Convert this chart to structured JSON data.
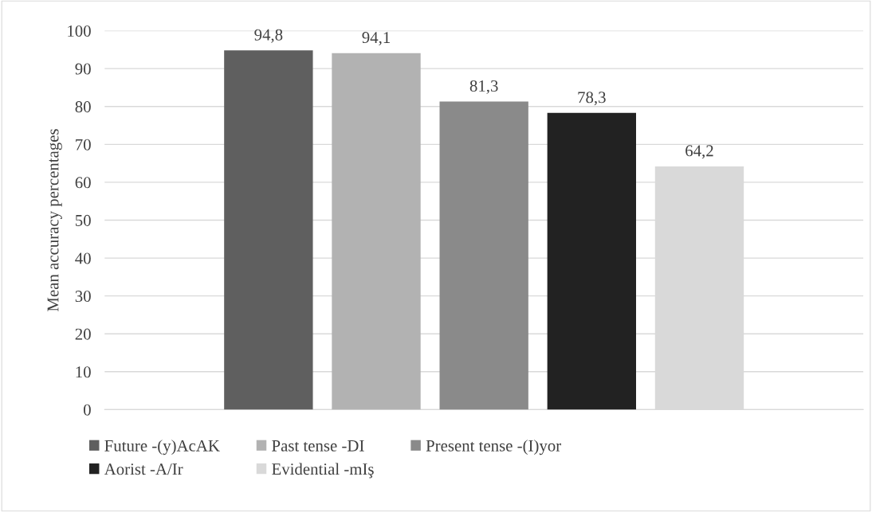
{
  "chart_data": {
    "type": "bar",
    "ylabel": "Mean accuracy percentages",
    "categories": [
      null
    ],
    "series": [
      {
        "name": "Future -(y)AcAK",
        "color": "#5f5f5f",
        "values": [
          94.8
        ],
        "value_labels": [
          "94,8"
        ]
      },
      {
        "name": "Past tense -DI",
        "color": "#b2b2b2",
        "values": [
          94.1
        ],
        "value_labels": [
          "94,1"
        ]
      },
      {
        "name": "Present tense -(I)yor",
        "color": "#8a8a8a",
        "values": [
          81.3
        ],
        "value_labels": [
          "81,3"
        ]
      },
      {
        "name": "Aorist -A/Ir",
        "color": "#222222",
        "values": [
          78.3
        ],
        "value_labels": [
          "78,3"
        ]
      },
      {
        "name": "Evidential -mIş",
        "color": "#d9d9d9",
        "values": [
          64.2
        ],
        "value_labels": [
          "64,2"
        ]
      }
    ],
    "ylim": [
      0,
      100
    ],
    "yticks": [
      0,
      10,
      20,
      30,
      40,
      50,
      60,
      70,
      80,
      90,
      100
    ],
    "grid": "y",
    "legend": "bottom"
  }
}
